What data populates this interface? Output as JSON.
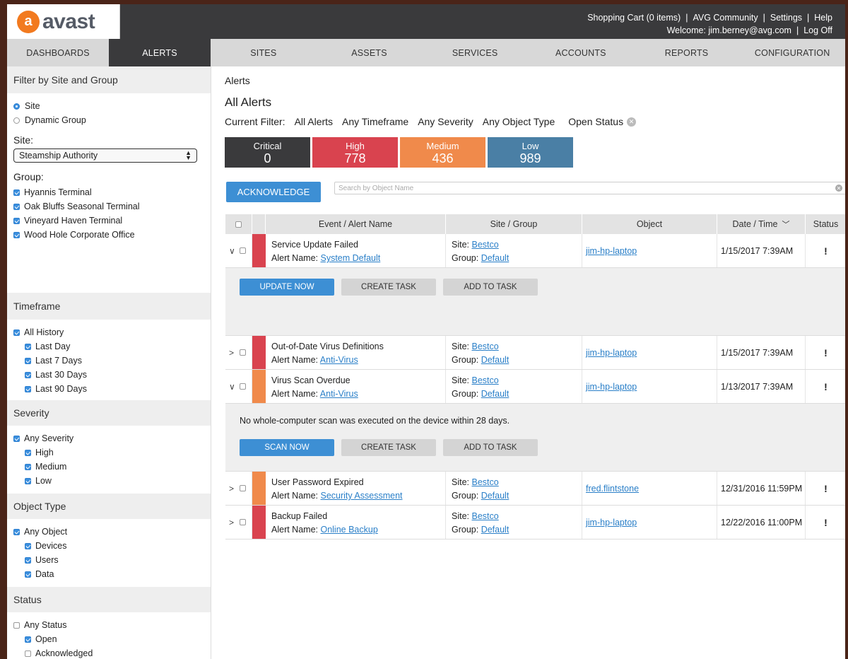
{
  "header": {
    "logo_mark": "a",
    "logo_text": "avast",
    "shopping_cart": "Shopping Cart (0 items)",
    "community": "AVG Community",
    "settings": "Settings",
    "help": "Help",
    "welcome": "Welcome: jim.berney@avg.com",
    "logoff": "Log Off"
  },
  "nav": {
    "left": [
      "DASHBOARDS",
      "ALERTS"
    ],
    "right": [
      "SITES",
      "ASSETS",
      "SERVICES",
      "ACCOUNTS",
      "REPORTS",
      "CONFIGURATION"
    ],
    "active": "ALERTS"
  },
  "sidebar": {
    "filter_title": "Filter by Site and Group",
    "mode_site": "Site",
    "mode_dynamic": "Dynamic Group",
    "site_label": "Site:",
    "site_value": "Steamship Authority",
    "group_label": "Group:",
    "groups": [
      "Hyannis Terminal",
      "Oak Bluffs Seasonal Terminal",
      "Vineyard Haven Terminal",
      "Wood Hole Corporate Office"
    ],
    "timeframe_title": "Timeframe",
    "timeframe_all": "All History",
    "timeframe_options": [
      "Last Day",
      "Last 7 Days",
      "Last 30 Days",
      "Last 90 Days"
    ],
    "severity_title": "Severity",
    "severity_all": "Any Severity",
    "severity_options": [
      "High",
      "Medium",
      "Low"
    ],
    "objtype_title": "Object Type",
    "objtype_all": "Any Object",
    "objtype_options": [
      "Devices",
      "Users",
      "Data"
    ],
    "status_title": "Status",
    "status_all": "Any Status",
    "status_open": "Open",
    "status_ack": "Acknowledged"
  },
  "main": {
    "breadcrumb": "Alerts",
    "title": "All Alerts",
    "filter_label": "Current Filter:",
    "filters": [
      "All Alerts",
      "Any Timeframe",
      "Any Severity",
      "Any Object Type",
      "Open Status"
    ],
    "severity": [
      {
        "label": "Critical",
        "count": "0",
        "color": "#3a3a3c"
      },
      {
        "label": "High",
        "count": "778",
        "color": "#d9434f"
      },
      {
        "label": "Medium",
        "count": "436",
        "color": "#f08a4b"
      },
      {
        "label": "Low",
        "count": "989",
        "color": "#4a7fa5"
      }
    ],
    "acknowledge": "ACKNOWLEDGE",
    "search_placeholder": "Search by Object Name"
  },
  "table": {
    "headers": {
      "event": "Event / Alert Name",
      "site": "Site / Group",
      "object": "Object",
      "date": "Date / Time",
      "status": "Status"
    },
    "site_prefix": "Site:",
    "group_prefix": "Group:",
    "alert_prefix": "Alert Name:",
    "rows": [
      {
        "event": "Service Update Failed",
        "alert": "System Default",
        "site": "Bestco",
        "group": "Default",
        "object": "jim-hp-laptop",
        "date": "1/15/2017 7:39AM",
        "status": "!",
        "color": "#d9434f",
        "chev": "∨"
      },
      {
        "event": "Out-of-Date Virus Definitions",
        "alert": "Anti-Virus",
        "site": "Bestco",
        "group": "Default",
        "object": "jim-hp-laptop",
        "date": "1/15/2017 7:39AM",
        "status": "!",
        "color": "#d9434f",
        "chev": ">"
      },
      {
        "event": "Virus Scan Overdue",
        "alert": "Anti-Virus",
        "site": "Bestco",
        "group": "Default",
        "object": "jim-hp-laptop",
        "date": "1/13/2017 7:39AM",
        "status": "!",
        "color": "#f08a4b",
        "chev": "∨"
      },
      {
        "event": "User Password Expired",
        "alert": "Security Assessment",
        "site": "Bestco",
        "group": "Default",
        "object": "fred.flintstone",
        "date": "12/31/2016 11:59PM",
        "status": "!",
        "color": "#f08a4b",
        "chev": ">"
      },
      {
        "event": "Backup Failed",
        "alert": "Online Backup",
        "site": "Bestco",
        "group": "Default",
        "object": "jim-hp-laptop",
        "date": "12/22/2016 11:00PM",
        "status": "!",
        "color": "#d9434f",
        "chev": ">"
      }
    ],
    "expand1": {
      "primary": "UPDATE NOW",
      "create": "CREATE TASK",
      "add": "ADD TO TASK"
    },
    "expand2": {
      "message": "No whole-computer scan was executed on the device within 28 days.",
      "primary": "SCAN NOW",
      "create": "CREATE TASK",
      "add": "ADD TO TASK"
    }
  }
}
